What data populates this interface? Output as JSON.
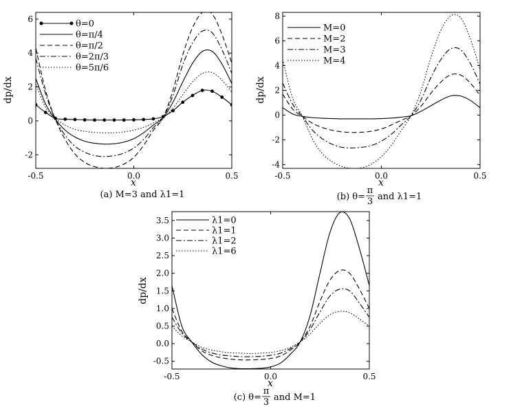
{
  "chart_data": [
    {
      "type": "line",
      "caption": "(a) M=3 and λ1=1",
      "xlabel": "x",
      "ylabel": "dp/dx",
      "xlim": [
        -0.5,
        0.5
      ],
      "ylim": [
        -2.8,
        6.4
      ],
      "xticks": [
        "-0.5",
        "0.0",
        "0.5"
      ],
      "yticks": [
        "-2",
        "0",
        "2",
        "4",
        "6"
      ],
      "grid": false,
      "legend_position": "top-left",
      "x": [
        -0.5,
        -0.45,
        -0.4,
        -0.35,
        -0.3,
        -0.25,
        -0.2,
        -0.15,
        -0.1,
        -0.05,
        0.0,
        0.05,
        0.1,
        0.15,
        0.2,
        0.25,
        0.3,
        0.35,
        0.4,
        0.45,
        0.5
      ],
      "series": [
        {
          "name": "θ=0",
          "style": "solid-dots",
          "values": [
            0.95,
            0.5,
            0.15,
            0.1,
            0.08,
            0.06,
            0.05,
            0.05,
            0.05,
            0.05,
            0.06,
            0.08,
            0.12,
            0.25,
            0.6,
            1.1,
            1.5,
            1.8,
            1.75,
            1.4,
            0.95
          ]
        },
        {
          "name": "θ=π/4",
          "style": "solid",
          "values": [
            2.5,
            1.0,
            0.1,
            -0.55,
            -0.95,
            -1.2,
            -1.32,
            -1.37,
            -1.35,
            -1.25,
            -1.05,
            -0.7,
            -0.25,
            0.2,
            1.1,
            2.3,
            3.4,
            4.1,
            4.1,
            3.35,
            2.2
          ]
        },
        {
          "name": "θ=π/2",
          "style": "dashed",
          "values": [
            4.3,
            1.8,
            0.1,
            -1.1,
            -1.95,
            -2.45,
            -2.7,
            -2.8,
            -2.75,
            -2.55,
            -2.15,
            -1.45,
            -0.55,
            0.2,
            1.8,
            3.9,
            5.5,
            6.4,
            6.3,
            5.1,
            3.4
          ]
        },
        {
          "name": "θ=2π/3",
          "style": "dashdot",
          "values": [
            3.7,
            1.6,
            0.1,
            -0.85,
            -1.5,
            -1.85,
            -2.05,
            -2.1,
            -2.05,
            -1.9,
            -1.6,
            -1.1,
            -0.4,
            0.2,
            1.5,
            3.3,
            4.6,
            5.3,
            5.2,
            4.2,
            2.8
          ]
        },
        {
          "name": "θ=5π/6",
          "style": "dotted",
          "values": [
            2.2,
            0.8,
            0.15,
            -0.25,
            -0.5,
            -0.62,
            -0.68,
            -0.7,
            -0.7,
            -0.65,
            -0.55,
            -0.38,
            -0.12,
            0.2,
            0.75,
            1.55,
            2.3,
            2.8,
            2.85,
            2.4,
            1.7
          ]
        }
      ]
    },
    {
      "type": "line",
      "caption_pre": "(b) θ=",
      "caption_frac_num": "π",
      "caption_frac_den": "3",
      "caption_post": "and λ1=1",
      "xlabel": "x",
      "ylabel": "dp/dx",
      "xlim": [
        -0.5,
        0.5
      ],
      "ylim": [
        -4.3,
        8.3
      ],
      "xticks": [
        "-0.5",
        "0.0",
        "0.5"
      ],
      "yticks": [
        "-4",
        "-2",
        "0",
        "2",
        "4",
        "6",
        "8"
      ],
      "grid": false,
      "legend_position": "top-left",
      "x": [
        -0.5,
        -0.45,
        -0.4,
        -0.35,
        -0.3,
        -0.25,
        -0.2,
        -0.15,
        -0.1,
        -0.05,
        0.0,
        0.05,
        0.1,
        0.15,
        0.2,
        0.25,
        0.3,
        0.35,
        0.4,
        0.45,
        0.5
      ],
      "series": [
        {
          "name": "M=0",
          "style": "solid",
          "values": [
            0.6,
            0.1,
            -0.1,
            -0.2,
            -0.25,
            -0.28,
            -0.3,
            -0.3,
            -0.3,
            -0.3,
            -0.28,
            -0.24,
            -0.16,
            -0.05,
            0.3,
            0.75,
            1.2,
            1.55,
            1.55,
            1.2,
            0.6
          ]
        },
        {
          "name": "M=2",
          "style": "dashed",
          "values": [
            1.7,
            0.5,
            -0.1,
            -0.65,
            -1.0,
            -1.22,
            -1.35,
            -1.4,
            -1.38,
            -1.3,
            -1.12,
            -0.8,
            -0.42,
            -0.05,
            0.7,
            1.75,
            2.65,
            3.25,
            3.25,
            2.6,
            1.6
          ]
        },
        {
          "name": "M=3",
          "style": "dashdot",
          "values": [
            2.6,
            0.9,
            -0.1,
            -1.2,
            -1.9,
            -2.35,
            -2.6,
            -2.65,
            -2.6,
            -2.45,
            -2.1,
            -1.55,
            -0.8,
            -0.05,
            1.2,
            3.0,
            4.45,
            5.35,
            5.3,
            4.2,
            2.5
          ]
        },
        {
          "name": "M=4",
          "style": "dotted",
          "values": [
            4.5,
            1.4,
            -0.1,
            -1.9,
            -3.1,
            -3.75,
            -4.15,
            -4.3,
            -4.25,
            -3.95,
            -3.35,
            -2.45,
            -1.25,
            -0.05,
            1.9,
            4.6,
            6.8,
            8.0,
            7.9,
            6.2,
            3.7
          ]
        }
      ]
    },
    {
      "type": "line",
      "caption_pre": "(c) θ=",
      "caption_frac_num": "π",
      "caption_frac_den": "3",
      "caption_post": "and M=1",
      "xlabel": "x",
      "ylabel": "dp/dx",
      "xlim": [
        -0.5,
        0.5
      ],
      "ylim": [
        -0.72,
        3.75
      ],
      "xticks": [
        "-0.5",
        "0.0",
        "0.5"
      ],
      "yticks": [
        "-0.5",
        "0.0",
        "0.5",
        "1.0",
        "1.5",
        "2.0",
        "2.5",
        "3.0",
        "3.5"
      ],
      "grid": false,
      "legend_position": "top-left",
      "x": [
        -0.5,
        -0.45,
        -0.4,
        -0.35,
        -0.3,
        -0.25,
        -0.2,
        -0.15,
        -0.1,
        -0.05,
        0.0,
        0.05,
        0.1,
        0.15,
        0.2,
        0.25,
        0.3,
        0.35,
        0.4,
        0.45,
        0.5
      ],
      "series": [
        {
          "name": "λ1=0",
          "style": "solid",
          "values": [
            1.65,
            0.5,
            0.05,
            -0.3,
            -0.52,
            -0.63,
            -0.69,
            -0.71,
            -0.71,
            -0.7,
            -0.66,
            -0.55,
            -0.3,
            0.05,
            0.8,
            2.0,
            3.15,
            3.72,
            3.55,
            2.7,
            1.65
          ]
        },
        {
          "name": "λ1=1",
          "style": "dashed",
          "values": [
            1.0,
            0.35,
            0.05,
            -0.2,
            -0.33,
            -0.4,
            -0.44,
            -0.46,
            -0.46,
            -0.45,
            -0.42,
            -0.35,
            -0.18,
            0.05,
            0.5,
            1.2,
            1.8,
            2.08,
            2.0,
            1.55,
            1.0
          ]
        },
        {
          "name": "λ1=2",
          "style": "dashdot",
          "values": [
            0.75,
            0.3,
            0.05,
            -0.15,
            -0.26,
            -0.32,
            -0.35,
            -0.37,
            -0.37,
            -0.36,
            -0.33,
            -0.27,
            -0.14,
            0.05,
            0.4,
            0.9,
            1.35,
            1.55,
            1.5,
            1.15,
            0.75
          ]
        },
        {
          "name": "λ1=6",
          "style": "dotted",
          "values": [
            0.5,
            0.22,
            0.05,
            -0.1,
            -0.18,
            -0.23,
            -0.26,
            -0.27,
            -0.28,
            -0.27,
            -0.25,
            -0.2,
            -0.1,
            0.05,
            0.28,
            0.58,
            0.82,
            0.92,
            0.88,
            0.7,
            0.5
          ]
        }
      ]
    }
  ]
}
